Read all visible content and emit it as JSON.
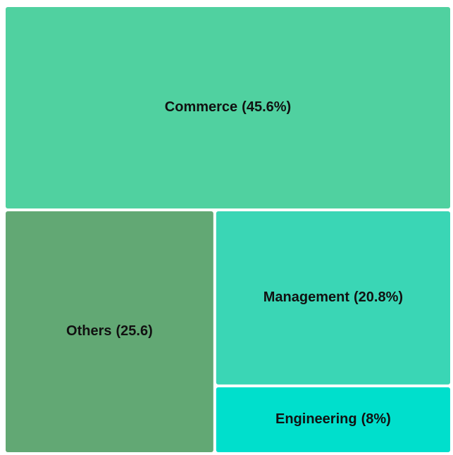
{
  "chart_data": {
    "type": "treemap",
    "categories": [
      "Commerce",
      "Others",
      "Management",
      "Engineering"
    ],
    "values": [
      45.6,
      25.6,
      20.8,
      8
    ],
    "value_labels": [
      "(45.6%)",
      "(25.6)",
      "(20.8%)",
      "(8%)"
    ],
    "colors": [
      "#50d1a0",
      "#62a874",
      "#3ad6b5",
      "#00dfcc"
    ]
  }
}
